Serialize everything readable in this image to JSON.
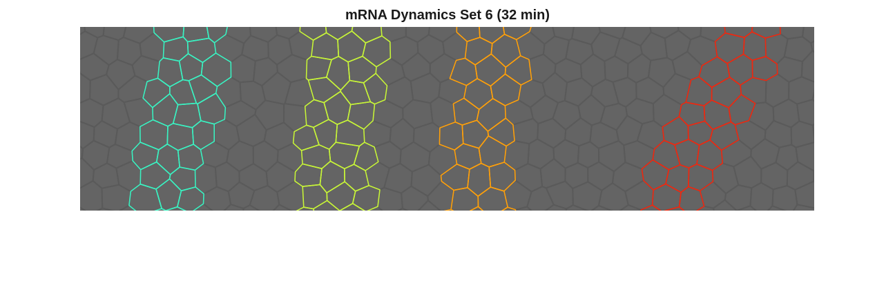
{
  "title": "mRNA Dynamics Set 6 (32 min)",
  "colors": {
    "background": "#ffffff",
    "tissue": "#646464",
    "membrane": "#5a5a5a",
    "stripe_1": "#3cf2c2",
    "stripe_2": "#c8f53a",
    "stripe_3": "#ffa10c",
    "stripe_4": "#ee2a12"
  },
  "stripes": [
    {
      "color_key": "stripe_1"
    },
    {
      "color_key": "stripe_2"
    },
    {
      "color_key": "stripe_3"
    },
    {
      "color_key": "stripe_4"
    }
  ]
}
